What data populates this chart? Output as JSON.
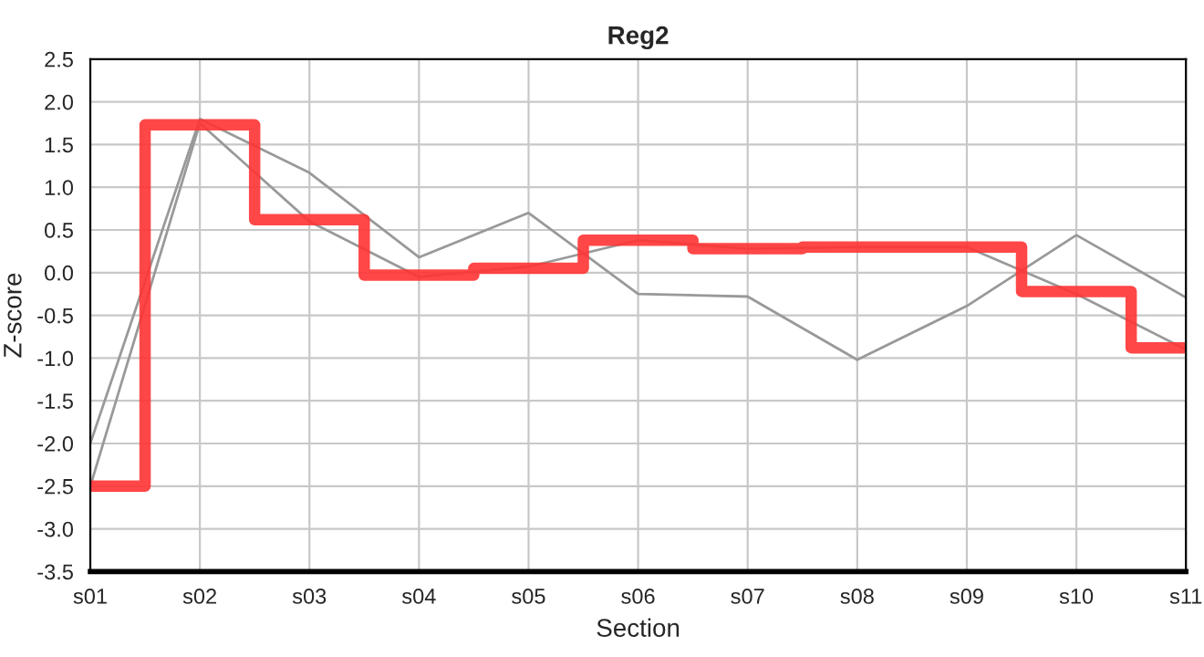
{
  "chart_data": {
    "type": "line",
    "title": "Reg2",
    "xlabel": "Section",
    "ylabel": "Z-score",
    "categories": [
      "s01",
      "s02",
      "s03",
      "s04",
      "s05",
      "s06",
      "s07",
      "s08",
      "s09",
      "s10",
      "s11"
    ],
    "series": [
      {
        "color": "#999999",
        "values": [
          -2.0,
          1.8,
          1.17,
          0.18,
          0.7,
          -0.25,
          -0.28,
          -1.02,
          -0.39,
          0.44,
          -0.29
        ]
      },
      {
        "color": "#999999",
        "values": [
          -2.5,
          1.75,
          0.6,
          -0.05,
          0.07,
          0.38,
          0.28,
          0.3,
          0.3,
          -0.25,
          -0.9
        ]
      },
      {
        "type": "step",
        "color": "#ff3333",
        "values": [
          -2.5,
          1.73,
          0.62,
          -0.03,
          0.05,
          0.38,
          0.28,
          0.3,
          0.3,
          -0.22,
          -0.88
        ]
      }
    ],
    "ylim": [
      -3.5,
      2.5
    ],
    "yticks": [
      {
        "value": -3.5,
        "label": "-3.5"
      },
      {
        "value": -3.0,
        "label": "-3.0"
      },
      {
        "value": -2.5,
        "label": "-2.5"
      },
      {
        "value": -2.0,
        "label": "-2.0"
      },
      {
        "value": -1.5,
        "label": "-1.5"
      },
      {
        "value": -1.0,
        "label": "-1.0"
      },
      {
        "value": -0.5,
        "label": "-0.5"
      },
      {
        "value": 0.0,
        "label": "0.0"
      },
      {
        "value": 0.5,
        "label": "0.5"
      },
      {
        "value": 1.0,
        "label": "1.0"
      },
      {
        "value": 1.5,
        "label": "1.5"
      },
      {
        "value": 2.0,
        "label": "2.0"
      },
      {
        "value": 2.5,
        "label": "2.5"
      }
    ],
    "grid": true,
    "legend": false
  }
}
